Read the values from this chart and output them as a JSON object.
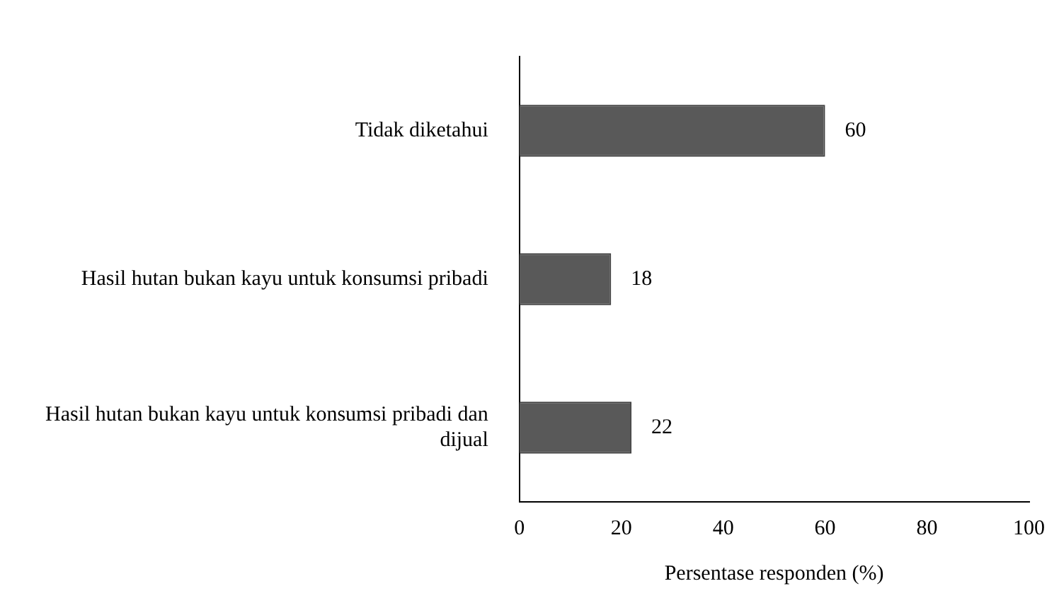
{
  "chart_data": {
    "type": "bar",
    "orientation": "horizontal",
    "categories": [
      "Tidak diketahui",
      "Hasil hutan bukan kayu untuk konsumsi pribadi",
      "Hasil hutan bukan kayu untuk konsumsi pribadi dan dijual"
    ],
    "values": [
      60,
      18,
      22
    ],
    "color": "#595959",
    "xlim": [
      0,
      100
    ],
    "xticks": [
      0,
      20,
      40,
      60,
      80,
      100
    ],
    "xlabel": "Persentase responden (%)",
    "grid": false,
    "legend": false,
    "data_labels": true
  }
}
